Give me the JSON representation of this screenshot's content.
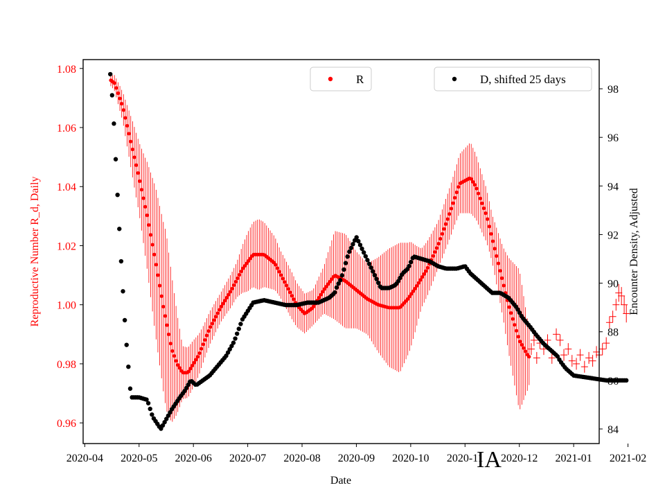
{
  "chart_data": {
    "type": "scatter",
    "title": "",
    "xlabel": "Date",
    "ylabel_left": "Reproductive Number R_d, Daily",
    "ylabel_right": "Encounter Density, Adjusted",
    "state_label": "IA",
    "x_tick_labels": [
      "2020-04",
      "2020-05",
      "2020-06",
      "2020-07",
      "2020-08",
      "2020-09",
      "2020-10",
      "2020-11",
      "2020-12",
      "2021-01",
      "2021-02"
    ],
    "x_range_months": [
      3.97,
      13.47
    ],
    "y_left_ticks": [
      "0.96",
      "0.98",
      "1.00",
      "1.02",
      "1.04",
      "1.06",
      "1.08"
    ],
    "y_left_range": [
      0.953,
      1.083
    ],
    "y_right_ticks": [
      "84",
      "86",
      "88",
      "90",
      "92",
      "94",
      "96",
      "98"
    ],
    "y_right_range": [
      83.4,
      99.2
    ],
    "colors": {
      "r_series": "#ff0000",
      "d_series": "#000000",
      "left_axis": "#ff0000",
      "right_axis": "#000000"
    },
    "legend": [
      {
        "label": "R",
        "color": "#ff0000",
        "placement": "top-center"
      },
      {
        "label": "D, shifted 25 days",
        "color": "#000000",
        "placement": "top-right"
      }
    ],
    "r_anchors": {
      "x": [
        4.48,
        4.55,
        4.7,
        4.85,
        5.0,
        5.15,
        5.3,
        5.45,
        5.6,
        5.7,
        5.8,
        5.9,
        6.1,
        6.3,
        6.5,
        6.7,
        6.9,
        7.1,
        7.3,
        7.5,
        7.7,
        7.9,
        8.05,
        8.2,
        8.4,
        8.6,
        8.8,
        9.0,
        9.2,
        9.4,
        9.6,
        9.8,
        9.95,
        10.1,
        10.3,
        10.5,
        10.7,
        10.9,
        11.1,
        11.2,
        11.4,
        11.6,
        11.8,
        12.0,
        12.15,
        12.2
      ],
      "y": [
        1.076,
        1.075,
        1.067,
        1.055,
        1.043,
        1.03,
        1.015,
        0.999,
        0.985,
        0.98,
        0.977,
        0.977,
        0.983,
        0.992,
        0.999,
        1.005,
        1.012,
        1.017,
        1.017,
        1.014,
        1.007,
        1.0,
        0.997,
        0.999,
        1.005,
        1.01,
        1.008,
        1.005,
        1.002,
        1.0,
        0.999,
        0.999,
        1.002,
        1.006,
        1.012,
        1.02,
        1.03,
        1.041,
        1.043,
        1.04,
        1.03,
        1.015,
        1.0,
        0.988,
        0.983,
        0.982
      ]
    },
    "r_err_anchors": {
      "x": [
        4.5,
        4.7,
        4.9,
        5.0,
        5.1,
        5.3,
        5.5,
        5.6,
        5.8,
        6.0,
        6.2,
        6.5,
        6.8,
        7.0,
        7.2,
        7.4,
        7.6,
        7.8,
        8.0,
        8.2,
        8.4,
        8.6,
        8.8,
        9.0,
        9.2,
        9.4,
        9.6,
        9.8,
        10.0,
        10.2,
        10.5,
        10.8,
        11.1,
        11.3,
        11.5,
        11.7,
        11.9,
        12.0,
        12.2
      ],
      "e": [
        0.002,
        0.005,
        0.01,
        0.012,
        0.016,
        0.025,
        0.03,
        0.025,
        0.009,
        0.008,
        0.006,
        0.005,
        0.006,
        0.01,
        0.012,
        0.01,
        0.008,
        0.008,
        0.007,
        0.006,
        0.008,
        0.015,
        0.016,
        0.013,
        0.012,
        0.016,
        0.02,
        0.022,
        0.018,
        0.01,
        0.008,
        0.009,
        0.012,
        0.01,
        0.008,
        0.012,
        0.02,
        0.024,
        0.008
      ]
    },
    "r_late": {
      "x": [
        12.22,
        12.27,
        12.32,
        12.38,
        12.45,
        12.52,
        12.6,
        12.68,
        12.75,
        12.82,
        12.9,
        12.97,
        13.05,
        13.12,
        13.2,
        13.28,
        13.35,
        13.42,
        13.47,
        13.53,
        13.6,
        13.66,
        13.72,
        13.78,
        13.83,
        13.88,
        13.93,
        13.97
      ],
      "y": [
        0.985,
        0.988,
        0.982,
        0.987,
        0.985,
        0.988,
        0.982,
        0.99,
        0.988,
        0.983,
        0.985,
        0.981,
        0.98,
        0.983,
        0.979,
        0.982,
        0.981,
        0.984,
        0.983,
        0.985,
        0.987,
        0.994,
        0.996,
        1.0,
        1.004,
        1.003,
        1.0,
        0.997
      ],
      "e": [
        0.002,
        0.002,
        0.002,
        0.002,
        0.002,
        0.002,
        0.002,
        0.002,
        0.002,
        0.002,
        0.002,
        0.002,
        0.002,
        0.002,
        0.002,
        0.002,
        0.002,
        0.002,
        0.002,
        0.002,
        0.002,
        0.002,
        0.002,
        0.002,
        0.003,
        0.003,
        0.003,
        0.003
      ]
    },
    "d_anchors": {
      "x": [
        4.47,
        4.52,
        4.57,
        4.62,
        4.68,
        4.75,
        4.85,
        5.0,
        5.15,
        5.25,
        5.4,
        5.6,
        5.75,
        5.85,
        5.95,
        6.05,
        6.3,
        6.45,
        6.6,
        6.75,
        6.9,
        7.1,
        7.3,
        7.5,
        7.7,
        7.9,
        8.1,
        8.3,
        8.5,
        8.6,
        8.65,
        8.7,
        8.75,
        8.85,
        9.0,
        9.15,
        9.3,
        9.45,
        9.6,
        9.7,
        9.75,
        9.8,
        9.85,
        9.95,
        10.05,
        10.2,
        10.35,
        10.5,
        10.65,
        10.75,
        10.85,
        11.0,
        11.1,
        11.2,
        11.35,
        11.5,
        11.65,
        11.8,
        11.95,
        12.05,
        12.2,
        12.3,
        12.45,
        12.6,
        12.65,
        12.7,
        12.75,
        12.85,
        13.0,
        13.3,
        13.6,
        13.97
      ],
      "y": [
        98.6,
        97.3,
        95.1,
        92.9,
        90.5,
        88.0,
        85.3,
        85.3,
        85.2,
        84.5,
        84.0,
        84.8,
        85.3,
        85.6,
        86.0,
        85.8,
        86.2,
        86.6,
        87.0,
        87.6,
        88.5,
        89.2,
        89.3,
        89.2,
        89.1,
        89.1,
        89.2,
        89.2,
        89.4,
        89.6,
        89.9,
        90.1,
        90.4,
        91.2,
        91.9,
        91.2,
        90.5,
        89.8,
        89.8,
        89.9,
        90.0,
        90.2,
        90.4,
        90.6,
        91.1,
        91.0,
        90.9,
        90.7,
        90.6,
        90.6,
        90.6,
        90.7,
        90.4,
        90.2,
        89.9,
        89.6,
        89.6,
        89.4,
        89.0,
        88.6,
        88.2,
        87.9,
        87.5,
        87.2,
        87.1,
        87.0,
        86.8,
        86.5,
        86.2,
        86.1,
        86.0,
        86.0
      ]
    }
  }
}
